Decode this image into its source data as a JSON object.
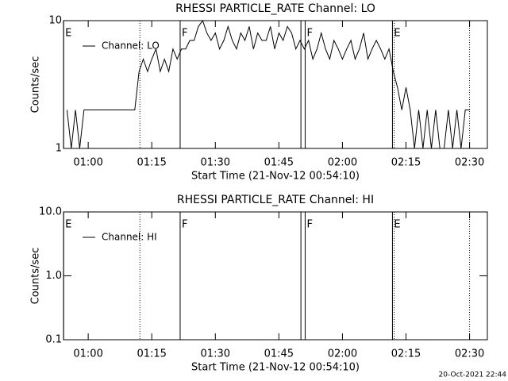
{
  "chart_data": [
    {
      "type": "line",
      "title": "RHESSI PARTICLE_RATE Channel: LO",
      "xlabel": "Start Time (21-Nov-12 00:54:10)",
      "ylabel": "Counts/sec",
      "log_y": true,
      "xlim": [
        54.17,
        154.2
      ],
      "ylim": [
        1,
        10
      ],
      "xticks": [
        {
          "value": 60,
          "label": "01:00"
        },
        {
          "value": 75,
          "label": "01:15"
        },
        {
          "value": 90,
          "label": "01:30"
        },
        {
          "value": 105,
          "label": "01:45"
        },
        {
          "value": 120,
          "label": "02:00"
        },
        {
          "value": 135,
          "label": "02:15"
        },
        {
          "value": 150,
          "label": "02:30"
        }
      ],
      "yticks": [
        1,
        10
      ],
      "markers": [
        {
          "x": 54.2,
          "label": "E",
          "style": "solid"
        },
        {
          "x": 72.2,
          "style": "dotted"
        },
        {
          "x": 81.7,
          "label": "F",
          "style": "solid"
        },
        {
          "x": 110.2,
          "style": "solid"
        },
        {
          "x": 111.2,
          "label": "F",
          "style": "solid"
        },
        {
          "x": 131.8,
          "label": "E",
          "style": "solid"
        },
        {
          "x": 132.2,
          "style": "dotted"
        },
        {
          "x": 150.0,
          "style": "dotted"
        }
      ],
      "x": [
        55,
        56,
        57,
        58,
        59,
        60,
        61,
        62,
        63,
        64,
        65,
        66,
        67,
        68,
        69,
        70,
        71,
        72,
        73,
        74,
        75,
        76,
        77,
        78,
        79,
        80,
        81,
        82,
        83,
        84,
        85,
        86,
        87,
        88,
        89,
        90,
        91,
        92,
        93,
        94,
        95,
        96,
        97,
        98,
        99,
        100,
        101,
        102,
        103,
        104,
        105,
        106,
        107,
        108,
        109,
        110,
        111,
        112,
        113,
        114,
        115,
        116,
        117,
        118,
        119,
        120,
        121,
        122,
        123,
        124,
        125,
        126,
        127,
        128,
        129,
        130,
        131,
        132,
        133,
        134,
        135,
        136,
        137,
        138,
        139,
        140,
        141,
        142,
        143,
        144,
        145,
        146,
        147,
        148,
        149,
        150
      ],
      "series": [
        {
          "name": "Channel: LO",
          "color": "#000000",
          "values": [
            2,
            1,
            2,
            1,
            2,
            2,
            2,
            2,
            2,
            2,
            2,
            2,
            2,
            2,
            2,
            2,
            2,
            4,
            5,
            4,
            5,
            6,
            4,
            5,
            4,
            6,
            5,
            6,
            6,
            7,
            7,
            9,
            10,
            8,
            7,
            8,
            6,
            7,
            9,
            7,
            6,
            8,
            7,
            9,
            6,
            8,
            7,
            7,
            9,
            6,
            8,
            7,
            9,
            8,
            6,
            7,
            6,
            7,
            5,
            6,
            8,
            6,
            5,
            7,
            6,
            5,
            6,
            7,
            5,
            6,
            8,
            5,
            6,
            7,
            6,
            5,
            6,
            4,
            3,
            2,
            3,
            2,
            1,
            2,
            1,
            2,
            1,
            2,
            1,
            1,
            2,
            1,
            2,
            1,
            2,
            2
          ]
        }
      ]
    },
    {
      "type": "line",
      "title": "RHESSI PARTICLE_RATE Channel: HI",
      "xlabel": "Start Time (21-Nov-12 00:54:10)",
      "ylabel": "Counts/sec",
      "log_y": true,
      "xlim": [
        54.17,
        154.2
      ],
      "ylim": [
        0.1,
        10
      ],
      "xticks": [
        {
          "value": 60,
          "label": "01:00"
        },
        {
          "value": 75,
          "label": "01:15"
        },
        {
          "value": 90,
          "label": "01:30"
        },
        {
          "value": 105,
          "label": "01:45"
        },
        {
          "value": 120,
          "label": "02:00"
        },
        {
          "value": 135,
          "label": "02:15"
        },
        {
          "value": 150,
          "label": "02:30"
        }
      ],
      "yticks": [
        {
          "value": 0.1,
          "label": "0.1"
        },
        {
          "value": 1,
          "label": "1.0"
        },
        {
          "value": 10,
          "label": "10.0"
        }
      ],
      "markers": [
        {
          "x": 54.2,
          "label": "E",
          "style": "solid"
        },
        {
          "x": 72.2,
          "style": "dotted"
        },
        {
          "x": 81.7,
          "label": "F",
          "style": "solid"
        },
        {
          "x": 110.2,
          "style": "solid"
        },
        {
          "x": 111.2,
          "label": "F",
          "style": "solid"
        },
        {
          "x": 131.8,
          "label": "E",
          "style": "solid"
        },
        {
          "x": 132.2,
          "style": "dotted"
        },
        {
          "x": 150.0,
          "style": "dotted"
        }
      ],
      "x": [],
      "series": [
        {
          "name": "Channel: HI",
          "color": "#000000",
          "values": []
        }
      ]
    }
  ],
  "footer": "20-Oct-2021 22:44"
}
